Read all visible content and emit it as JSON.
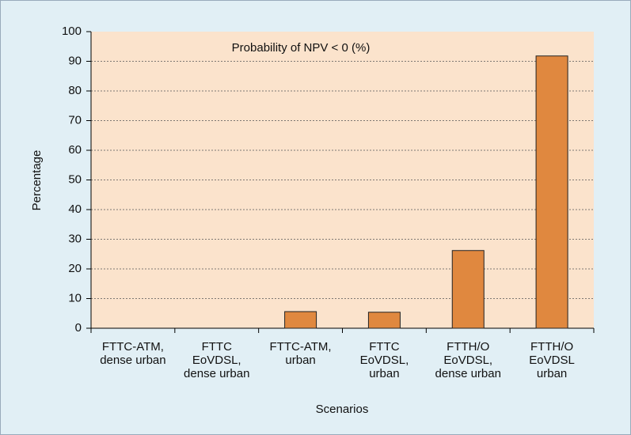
{
  "chart_data": {
    "type": "bar",
    "annotation": "Probability of NPV < 0 (%)",
    "x_label": "Scenarios",
    "y_label": "Percentage",
    "categories": [
      [
        "FTTC-ATM,",
        "dense urban"
      ],
      [
        "FTTC",
        "EoVDSL,",
        "dense urban"
      ],
      [
        "FTTC-ATM,",
        "urban"
      ],
      [
        "FTTC",
        "EoVDSL,",
        "urban"
      ],
      [
        "FTTH/O",
        "EoVDSL,",
        "dense urban"
      ],
      [
        "FTTH/O",
        "EoVDSL",
        "urban"
      ]
    ],
    "values": [
      0,
      0,
      5.6,
      5.4,
      26.2,
      91.8
    ],
    "color": "#e0883f",
    "ylim": [
      0,
      100
    ],
    "yticks": [
      0,
      10,
      20,
      30,
      40,
      50,
      60,
      70,
      80,
      90,
      100
    ],
    "grid": true
  }
}
